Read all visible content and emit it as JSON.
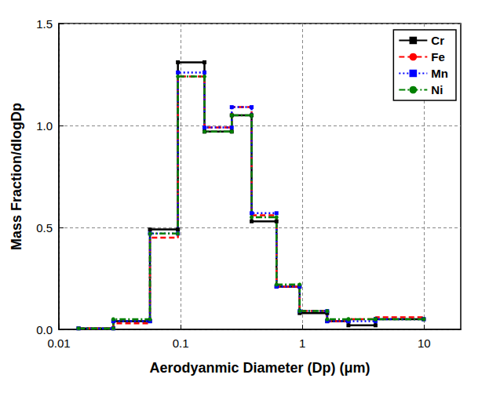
{
  "chart_data": {
    "type": "step",
    "x_label": "Aerodyanmic Diameter (Dp) (μm)",
    "y_label": "Mass Fraction/dlogDp",
    "bins": [
      0.0145,
      0.028,
      0.056,
      0.095,
      0.157,
      0.263,
      0.383,
      0.613,
      0.95,
      1.6,
      2.39,
      3.99,
      9.93
    ],
    "series": [
      {
        "name": "Cr",
        "color": "#000000",
        "marker": "square",
        "line_style": "solid",
        "values": [
          0.005,
          0.04,
          0.49,
          1.31,
          0.97,
          1.05,
          0.53,
          0.21,
          0.08,
          0.04,
          0.02,
          0.05
        ]
      },
      {
        "name": "Fe",
        "color": "#ff0000",
        "marker": "none",
        "line_style": "dashed",
        "values": [
          0.005,
          0.03,
          0.45,
          1.24,
          0.99,
          1.09,
          0.56,
          0.21,
          0.09,
          0.04,
          0.05,
          0.06
        ]
      },
      {
        "name": "Mn",
        "color": "#0000ff",
        "marker": "square",
        "line_style": "dotted",
        "values": [
          0.005,
          0.04,
          0.47,
          1.26,
          0.99,
          1.09,
          0.57,
          0.21,
          0.09,
          0.04,
          0.04,
          0.05
        ]
      },
      {
        "name": "Ni",
        "color": "#008000",
        "marker": "circle",
        "line_style": "dashdot",
        "values": [
          0.005,
          0.05,
          0.47,
          1.24,
          0.97,
          1.05,
          0.55,
          0.22,
          0.09,
          0.05,
          0.05,
          0.05
        ]
      }
    ],
    "xlim": [
      0.01,
      20
    ],
    "xticks": [
      0.01,
      0.1,
      1,
      10
    ],
    "ylim": [
      0,
      1.5
    ],
    "yticks": [
      {
        "value": 0,
        "label": "0.0"
      },
      {
        "value": 0.5,
        "label": "0.5"
      },
      {
        "value": 1,
        "label": "1.0"
      },
      {
        "value": 1.5,
        "label": "1.5"
      }
    ],
    "log": "x",
    "grid": true,
    "legend": "top-right"
  }
}
